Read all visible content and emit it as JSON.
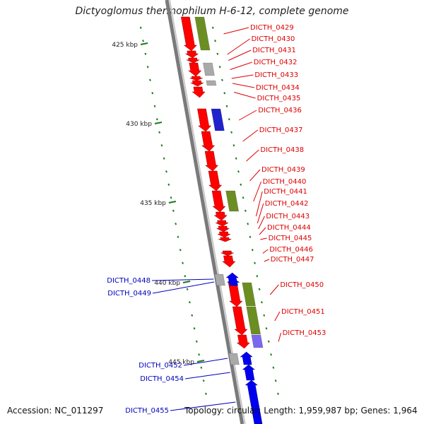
{
  "title": "Dictyoglomus thermophilum H-6-12, complete genome",
  "accession": "Accession: NC_011297",
  "summary": "Topology: circular; Length: 1,959,987 bp; Genes: 1,964",
  "colors": {
    "backbone_dark": "#7a7a7a",
    "backbone_light": "#c8c8c8",
    "forward_cds": "#ff0000",
    "reverse_cds": "#0000ee",
    "cog_green": "#6b8e23",
    "cog_blue": "#2222cc",
    "cog_lavender": "#7b68ee",
    "cog_gray": "#a9a9a9",
    "tick": "#1a7a1a",
    "label_red": "#dd0000",
    "label_blue": "#0000bb"
  },
  "scale": {
    "unit": "kbp",
    "ticks": [
      {
        "value": 425,
        "label": "425 kbp"
      },
      {
        "value": 430,
        "label": "430 kbp"
      },
      {
        "value": 435,
        "label": "435 kbp"
      },
      {
        "value": 440,
        "label": "440 kbp"
      },
      {
        "value": 445,
        "label": "445 kbp"
      }
    ]
  },
  "genes_forward": [
    {
      "label": "DICTH_0429",
      "cog": "cog_green"
    },
    {
      "label": "DICTH_0430",
      "cog": null
    },
    {
      "label": "DICTH_0431",
      "cog": null
    },
    {
      "label": "DICTH_0432",
      "cog": "cog_gray"
    },
    {
      "label": "DICTH_0433",
      "cog": null
    },
    {
      "label": "DICTH_0434",
      "cog": "cog_gray"
    },
    {
      "label": "DICTH_0435",
      "cog": null
    },
    {
      "label": "DICTH_0436",
      "cog": "cog_blue"
    },
    {
      "label": "DICTH_0437",
      "cog": null
    },
    {
      "label": "DICTH_0438",
      "cog": null
    },
    {
      "label": "DICTH_0439",
      "cog": null
    },
    {
      "label": "DICTH_0440",
      "cog": "cog_green"
    },
    {
      "label": "DICTH_0441",
      "cog": null
    },
    {
      "label": "DICTH_0442",
      "cog": null
    },
    {
      "label": "DICTH_0443",
      "cog": null
    },
    {
      "label": "DICTH_0444",
      "cog": null
    },
    {
      "label": "DICTH_0445",
      "cog": null
    },
    {
      "label": "DICTH_0446",
      "cog": null
    },
    {
      "label": "DICTH_0447",
      "cog": null
    },
    {
      "label": "DICTH_0450",
      "cog": "cog_green"
    },
    {
      "label": "DICTH_0451",
      "cog": "cog_green"
    },
    {
      "label": "DICTH_0453",
      "cog": "cog_lavender"
    }
  ],
  "genes_reverse": [
    {
      "label": "DICTH_0448",
      "cog": "cog_gray"
    },
    {
      "label": "DICTH_0449",
      "cog": null
    },
    {
      "label": "DICTH_0452",
      "cog": "cog_gray"
    },
    {
      "label": "DICTH_0454",
      "cog": null
    },
    {
      "label": "DICTH_0455",
      "cog": null
    }
  ]
}
